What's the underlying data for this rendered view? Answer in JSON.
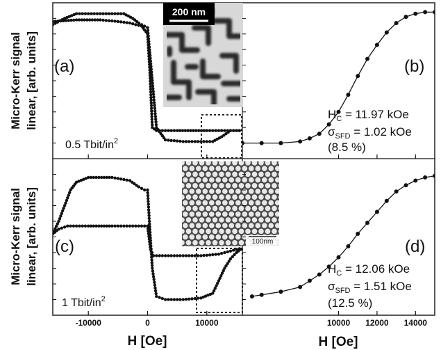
{
  "figure": {
    "ylabel_line1": "Micro-Kerr signal",
    "ylabel_line2": "linear, [arb. units]",
    "xlabel": "H [Oe]",
    "colors": {
      "axis": "#111111",
      "data": "#111111",
      "frame_dash": "#222222"
    }
  },
  "panels": {
    "a": {
      "letter": "(a)",
      "density": "0.5 Tbit/in",
      "density_sup": "2"
    },
    "b": {
      "letter": "(b)",
      "hc_label": "H",
      "hc_sub": "C",
      "hc_value": " = 11.97 kOe",
      "sigma_label": "σ",
      "sigma_sub": "SFD",
      "sigma_value": " = 1.02 kOe",
      "percent": "(8.5 %)"
    },
    "c": {
      "letter": "(c)",
      "density": "1 Tbit/in",
      "density_sup": "2"
    },
    "d": {
      "letter": "(d)",
      "hc_label": "H",
      "hc_sub": "C",
      "hc_value": " = 12.06 kOe",
      "sigma_label": "σ",
      "sigma_sub": "SFD",
      "sigma_value": " = 1.51 kOe",
      "percent": "(12.5 %)"
    }
  },
  "sem_top": {
    "scale_label": "200 nm",
    "icon": "sem-image-maze-domains"
  },
  "sem_bottom": {
    "scale_label": "100nm",
    "icon": "sem-image-hex-dots"
  },
  "chart_data": [
    {
      "type": "scatter",
      "panel": "a",
      "xlim": [
        -16000,
        16000
      ],
      "ylim": [
        0,
        1
      ],
      "xticks": [
        -10000,
        0,
        10000
      ],
      "xticklabels": [
        "-10000",
        "0",
        "10000"
      ],
      "series": [
        {
          "x": [
            -16000,
            -12000,
            -8000,
            -5000,
            -3000,
            -2000,
            -1000,
            0,
            400,
            800,
            1500,
            5000,
            10000,
            13000,
            16000
          ],
          "y": [
            0.88,
            0.89,
            0.89,
            0.88,
            0.87,
            0.86,
            0.85,
            0.8,
            0.55,
            0.2,
            0.18,
            0.18,
            0.18,
            0.18,
            0.18
          ]
        },
        {
          "x": [
            -16000,
            -14000,
            -12000,
            -10000,
            -8000,
            -6000,
            -4000,
            -2500,
            -1500,
            -500,
            0,
            1500,
            3000,
            6000,
            9000,
            11000,
            12500,
            14000,
            16000
          ],
          "y": [
            0.86,
            0.9,
            0.93,
            0.93,
            0.93,
            0.93,
            0.93,
            0.9,
            0.87,
            0.85,
            0.84,
            0.2,
            0.12,
            0.11,
            0.11,
            0.11,
            0.14,
            0.18,
            0.18
          ]
        }
      ]
    },
    {
      "type": "line",
      "panel": "b",
      "xlim": [
        5000,
        15000
      ],
      "ylim": [
        0,
        1
      ],
      "xticks": [
        10000,
        12000,
        14000
      ],
      "xticklabels": [
        "10000",
        "12000",
        "14000"
      ],
      "series": [
        {
          "x": [
            5000,
            6000,
            7000,
            8000,
            8500,
            9000,
            9500,
            10000,
            10500,
            11000,
            11500,
            12000,
            12500,
            13000,
            13500,
            14000,
            14500,
            15000
          ],
          "y": [
            0.1,
            0.1,
            0.1,
            0.11,
            0.13,
            0.16,
            0.22,
            0.3,
            0.41,
            0.53,
            0.64,
            0.73,
            0.81,
            0.87,
            0.91,
            0.93,
            0.94,
            0.94
          ]
        }
      ]
    },
    {
      "type": "scatter",
      "panel": "c",
      "xlim": [
        -16000,
        16000
      ],
      "ylim": [
        0,
        1
      ],
      "xticks": [
        -10000,
        0,
        10000
      ],
      "xticklabels": [
        "-10000",
        "0",
        "10000"
      ],
      "series": [
        {
          "x": [
            -16000,
            -15000,
            -13500,
            -12000,
            -10000,
            -6000,
            -3000,
            -1000,
            0,
            500,
            1000,
            1500,
            3000,
            6000,
            9000,
            12000,
            14000,
            16000
          ],
          "y": [
            0.52,
            0.55,
            0.57,
            0.57,
            0.57,
            0.57,
            0.57,
            0.57,
            0.57,
            0.42,
            0.38,
            0.38,
            0.38,
            0.38,
            0.38,
            0.39,
            0.41,
            0.43
          ]
        },
        {
          "x": [
            -16000,
            -15000,
            -14000,
            -13000,
            -12000,
            -10000,
            -6000,
            -3000,
            -1500,
            -500,
            0,
            300,
            800,
            1500,
            3000,
            6000,
            9000,
            11000,
            12000,
            13000,
            14000,
            15000,
            16000
          ],
          "y": [
            0.52,
            0.6,
            0.7,
            0.8,
            0.85,
            0.88,
            0.88,
            0.86,
            0.82,
            0.8,
            0.8,
            0.6,
            0.3,
            0.12,
            0.1,
            0.1,
            0.11,
            0.14,
            0.22,
            0.3,
            0.36,
            0.4,
            0.43
          ]
        }
      ]
    },
    {
      "type": "line",
      "panel": "d",
      "xlim": [
        5000,
        15000
      ],
      "ylim": [
        0,
        1
      ],
      "xticks": [
        10000,
        12000,
        14000
      ],
      "xticklabels": [
        "10000",
        "12000",
        "14000"
      ],
      "series": [
        {
          "x": [
            5500,
            6000,
            7000,
            8000,
            8500,
            9000,
            9500,
            10000,
            10500,
            11000,
            11500,
            12000,
            12500,
            13000,
            13500,
            14000,
            14500,
            15000
          ],
          "y": [
            0.12,
            0.13,
            0.15,
            0.18,
            0.22,
            0.26,
            0.31,
            0.37,
            0.44,
            0.52,
            0.59,
            0.66,
            0.73,
            0.79,
            0.83,
            0.86,
            0.88,
            0.89
          ]
        }
      ]
    }
  ]
}
